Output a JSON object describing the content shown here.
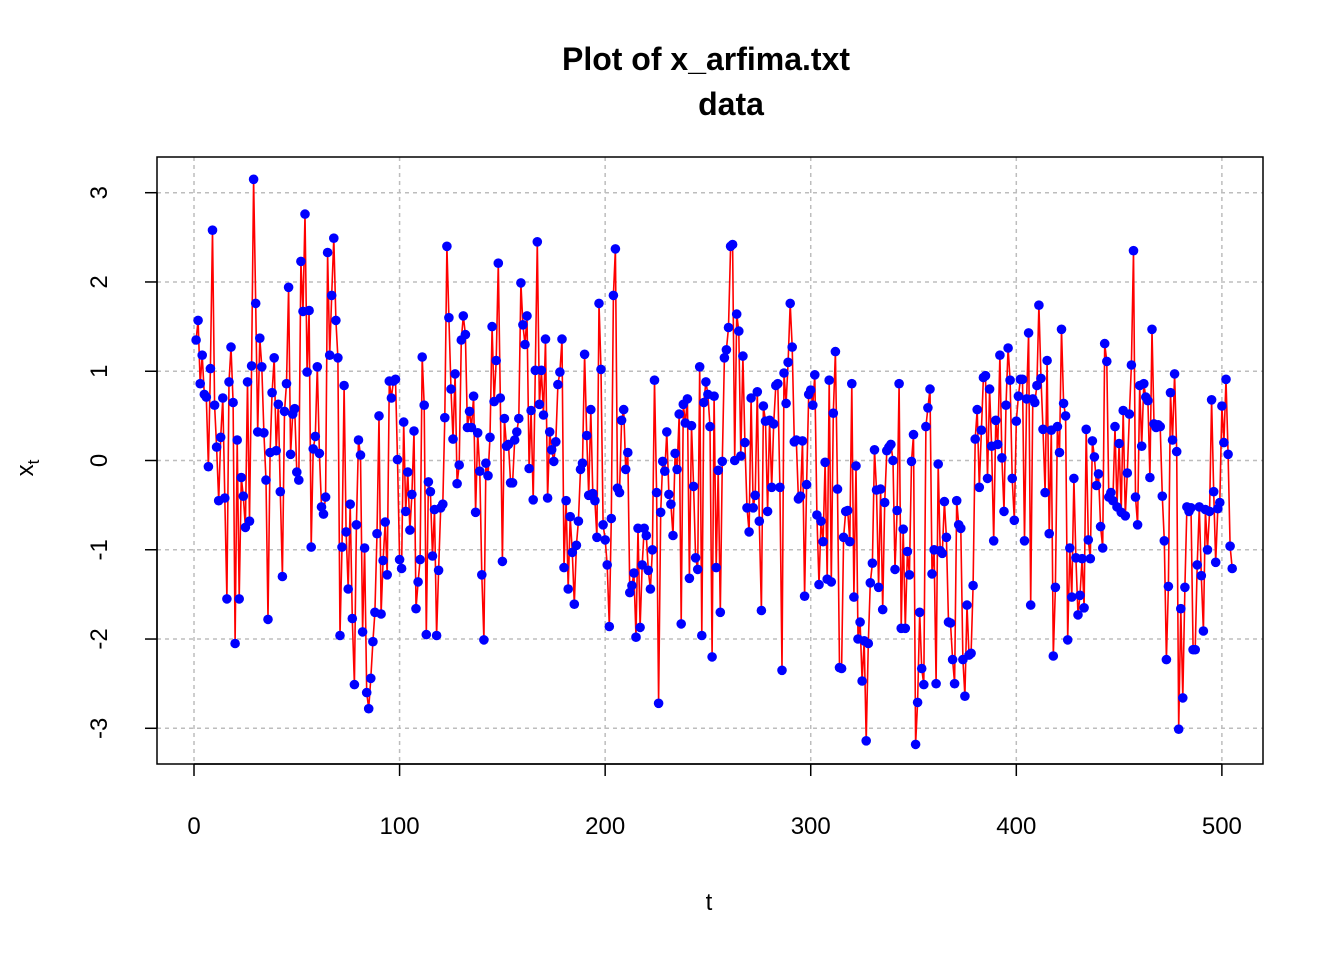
{
  "chart_data": {
    "type": "line",
    "title_line1": "Plot of x_arfima.txt",
    "title_line2": "data",
    "xlabel": "t",
    "ylabel_main": "x",
    "ylabel_sub": "t",
    "xlim": [
      -18,
      520
    ],
    "ylim": [
      -3.4,
      3.4
    ],
    "x_ticks": [
      0,
      100,
      200,
      300,
      400,
      500
    ],
    "y_ticks": [
      -3,
      -2,
      -1,
      0,
      1,
      2,
      3
    ],
    "grid": true,
    "line_color": "#ff0000",
    "point_color": "#0000ff",
    "series": [
      {
        "x_start": 1,
        "x_step": 1,
        "values": [
          1.35,
          1.57,
          0.86,
          1.18,
          0.74,
          0.71,
          -0.07,
          1.03,
          2.58,
          0.62,
          0.15,
          -0.45,
          0.26,
          0.7,
          -0.42,
          -1.55,
          0.88,
          1.27,
          0.65,
          -2.05,
          0.23,
          -1.55,
          -0.19,
          -0.4,
          -0.75,
          0.88,
          -0.68,
          1.06,
          3.15,
          1.76,
          0.32,
          1.37,
          1.05,
          0.31,
          -0.22,
          -1.78,
          0.09,
          0.76,
          1.15,
          0.11,
          0.63,
          -0.35,
          -1.3,
          0.55,
          0.86,
          1.94,
          0.07,
          0.52,
          0.58,
          -0.13,
          -0.22,
          2.23,
          1.67,
          2.76,
          0.99,
          1.68,
          -0.97,
          0.13,
          0.27,
          1.05,
          0.08,
          -0.52,
          -0.6,
          -0.41,
          2.33,
          1.18,
          1.85,
          2.49,
          1.57,
          1.15,
          -1.96,
          -0.97,
          0.84,
          -0.8,
          -1.44,
          -0.49,
          -1.77,
          -2.51,
          -0.72,
          0.23,
          0.06,
          -1.92,
          -0.98,
          -2.6,
          -2.78,
          -2.44,
          -2.03,
          -1.7,
          -0.82,
          0.5,
          -1.72,
          -1.12,
          -0.69,
          -1.28,
          0.89,
          0.7,
          0.89,
          0.91,
          0.01,
          -1.11,
          -1.21,
          0.43,
          -0.57,
          -0.13,
          -0.78,
          -0.38,
          0.33,
          -1.66,
          -1.36,
          -1.11,
          1.16,
          0.62,
          -1.95,
          -0.24,
          -0.35,
          -1.07,
          -0.55,
          -1.96,
          -1.23,
          -0.53,
          -0.49,
          0.48,
          2.4,
          1.6,
          0.8,
          0.24,
          0.97,
          -0.26,
          -0.05,
          1.35,
          1.62,
          1.41,
          0.37,
          0.55,
          0.37,
          0.72,
          -0.58,
          0.31,
          -0.12,
          -1.28,
          -2.01,
          -0.03,
          -0.17,
          0.26,
          1.5,
          0.66,
          1.12,
          2.21,
          0.7,
          -1.13,
          0.47,
          0.16,
          0.18,
          -0.25,
          -0.25,
          0.23,
          0.32,
          0.47,
          1.99,
          1.52,
          1.3,
          1.62,
          -0.09,
          0.56,
          -0.44,
          1.01,
          2.45,
          0.63,
          1.01,
          0.51,
          1.36,
          -0.42,
          0.32,
          0.12,
          -0.01,
          0.21,
          0.85,
          0.99,
          1.36,
          -1.2,
          -0.45,
          -1.44,
          -0.63,
          -1.03,
          -1.61,
          -0.95,
          -0.68,
          -0.1,
          -0.03,
          1.19,
          0.28,
          -0.39,
          0.57,
          -0.37,
          -0.45,
          -0.86,
          1.76,
          1.02,
          -0.72,
          -0.89,
          -1.17,
          -1.86,
          -0.65,
          1.85,
          2.37,
          -0.31,
          -0.36,
          0.45,
          0.57,
          -0.1,
          0.09,
          -1.48,
          -1.4,
          -1.26,
          -1.98,
          -0.76,
          -1.87,
          -1.17,
          -0.76,
          -0.84,
          -1.23,
          -1.44,
          -1.0,
          0.9,
          -0.36,
          -2.72,
          -0.58,
          -0.01,
          -0.12,
          0.32,
          -0.38,
          -0.49,
          -0.84,
          0.08,
          -0.1,
          0.52,
          -1.83,
          0.63,
          0.42,
          0.69,
          -1.32,
          0.39,
          -0.29,
          -1.09,
          -1.22,
          1.05,
          -1.96,
          0.65,
          0.88,
          0.74,
          0.38,
          -2.2,
          0.72,
          -1.2,
          -0.11,
          -1.7,
          -0.01,
          1.15,
          1.24,
          1.49,
          2.4,
          2.42,
          0.0,
          1.64,
          1.45,
          0.05,
          1.17,
          0.2,
          -0.53,
          -0.8,
          0.7,
          -0.53,
          -0.39,
          0.77,
          -0.68,
          -1.68,
          0.61,
          0.44,
          -0.57,
          0.45,
          -0.3,
          0.41,
          0.84,
          0.86,
          -0.3,
          -2.35,
          0.98,
          0.64,
          1.1,
          1.76,
          1.27,
          0.21,
          0.23,
          -0.43,
          -0.4,
          0.22,
          -1.52,
          -0.27,
          0.74,
          0.79,
          0.62,
          0.96,
          -0.61,
          -1.39,
          -0.68,
          -0.91,
          -0.02,
          -1.33,
          0.9,
          -1.36,
          0.53,
          1.22,
          -0.32,
          -2.32,
          -2.33,
          -0.86,
          -0.57,
          -0.56,
          -0.91,
          0.86,
          -1.53,
          -0.06,
          -2.0,
          -1.81,
          -2.47,
          -2.02,
          -3.14,
          -2.05,
          -1.37,
          -1.15,
          0.12,
          -0.33,
          -1.42,
          -0.32,
          -1.67,
          -0.47,
          0.11,
          0.15,
          0.18,
          0.0,
          -1.22,
          -0.56,
          0.86,
          -1.88,
          -0.77,
          -1.88,
          -1.02,
          -1.28,
          -0.01,
          0.29,
          -3.18,
          -2.71,
          -1.7,
          -2.33,
          -2.51,
          0.38,
          0.59,
          0.8,
          -1.27,
          -1.0,
          -2.5,
          -0.04,
          -1.01,
          -1.04,
          -0.46,
          -0.86,
          -1.81,
          -1.82,
          -2.23,
          -2.5,
          -0.45,
          -0.72,
          -0.76,
          -2.23,
          -2.64,
          -1.62,
          -2.18,
          -2.16,
          -1.4,
          0.24,
          0.57,
          -0.3,
          0.34,
          0.93,
          0.95,
          -0.2,
          0.8,
          0.16,
          -0.9,
          0.45,
          0.18,
          1.18,
          0.03,
          -0.57,
          0.62,
          1.26,
          0.9,
          -0.2,
          -0.67,
          0.44,
          0.72,
          0.91,
          0.91,
          -0.9,
          0.69,
          1.43,
          -1.62,
          0.69,
          0.65,
          0.84,
          1.74,
          0.92,
          0.35,
          -0.36,
          1.12,
          -0.82,
          0.34,
          -2.19,
          -1.42,
          0.38,
          0.09,
          1.47,
          0.64,
          0.5,
          -2.01,
          -0.98,
          -1.53,
          -0.2,
          -1.09,
          -1.73,
          -1.51,
          -1.1,
          -1.65,
          0.35,
          -0.89,
          -1.1,
          0.22,
          0.04,
          -0.28,
          -0.15,
          -0.74,
          -0.98,
          1.31,
          1.11,
          -0.41,
          -0.36,
          -0.45,
          0.38,
          -0.52,
          0.19,
          -0.58,
          0.56,
          -0.62,
          -0.14,
          0.52,
          1.07,
          2.35,
          -0.41,
          -0.72,
          0.84,
          0.16,
          0.86,
          0.71,
          0.67,
          -0.19,
          1.47,
          0.41,
          0.37,
          0.4,
          0.38,
          -0.4,
          -0.9,
          -2.23,
          -1.41,
          0.76,
          0.23,
          0.97,
          0.1,
          -3.01,
          -1.66,
          -2.66,
          -1.42,
          -0.52,
          -0.57,
          -0.53,
          -2.12,
          -2.12,
          -1.17,
          -0.52,
          -1.29,
          -1.91,
          -0.55,
          -1.0,
          -0.57,
          0.68,
          -0.35,
          -1.14,
          -0.54,
          -0.47,
          0.61,
          0.2,
          0.91,
          0.07,
          -0.96,
          -1.21
        ]
      }
    ]
  }
}
